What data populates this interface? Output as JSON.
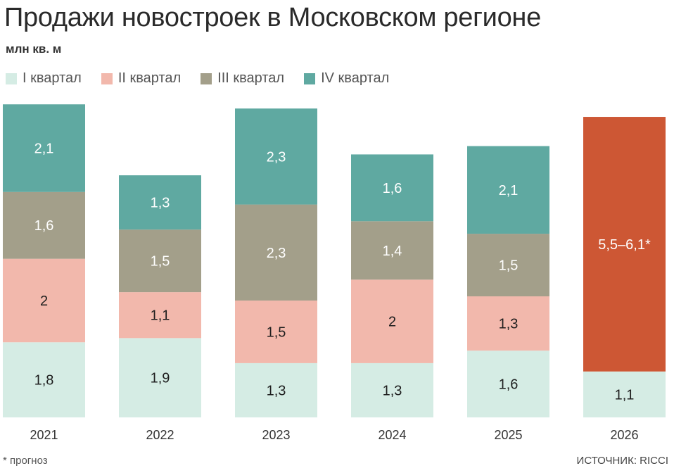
{
  "header": {
    "title": "Продажи новостроек в Московском регионе",
    "subtitle": "млн кв. м"
  },
  "legend": {
    "items": [
      {
        "label": "I квартал",
        "color": "#d5ece4"
      },
      {
        "label": "II квартал",
        "color": "#f2b8ac"
      },
      {
        "label": "III квартал",
        "color": "#a39f8a"
      },
      {
        "label": "IV квартал",
        "color": "#5fa9a1"
      }
    ]
  },
  "chart_data": {
    "type": "bar",
    "stacked": true,
    "categories": [
      "2021",
      "2022",
      "2023",
      "2024",
      "2025",
      "2026"
    ],
    "series": [
      {
        "name": "I квартал",
        "color": "#d5ece4",
        "values": [
          1.8,
          1.9,
          1.3,
          1.3,
          1.6,
          1.1
        ],
        "labels": [
          "1,8",
          "1,9",
          "1,3",
          "1,3",
          "1,6",
          "1,1"
        ]
      },
      {
        "name": "II квартал",
        "color": "#f2b8ac",
        "values": [
          2,
          1.1,
          1.5,
          2,
          1.3,
          null
        ],
        "labels": [
          "2",
          "1,1",
          "1,5",
          "2",
          "1,3",
          null
        ]
      },
      {
        "name": "III квартал",
        "color": "#a39f8a",
        "values": [
          1.6,
          1.5,
          2.3,
          1.4,
          1.5,
          null
        ],
        "labels": [
          "1,6",
          "1,5",
          "2,3",
          "1,4",
          "1,5",
          null
        ]
      },
      {
        "name": "IV квартал",
        "color": "#5fa9a1",
        "values": [
          2.1,
          1.3,
          2.3,
          1.6,
          2.1,
          null
        ],
        "labels": [
          "2,1",
          "1,3",
          "2,3",
          "1,6",
          "2,1",
          null
        ]
      }
    ],
    "forecast": {
      "category": "2026",
      "value_range": [
        5.5,
        6.1
      ],
      "label": "5,5–6,1*",
      "color": "#cd5734"
    },
    "ylim": [
      0,
      7.5
    ],
    "grid": false,
    "legend_position": "top-left"
  },
  "footer": {
    "footnote": "* прогноз",
    "source": "ИСТОЧНИК: RICCI"
  }
}
